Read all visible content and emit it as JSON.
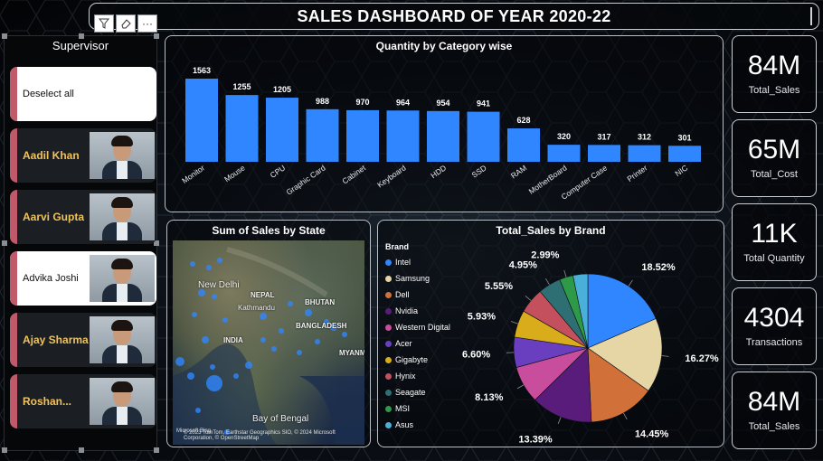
{
  "header": {
    "title": "SALES DASHBOARD OF YEAR 2020-22"
  },
  "toolbar": {
    "filter_icon": "filter-icon",
    "eraser_icon": "eraser-icon",
    "more_label": "···"
  },
  "slicer": {
    "title": "Supervisor",
    "items": [
      {
        "label": "Deselect all",
        "style": "white",
        "photo": false
      },
      {
        "label": "Aadil Khan",
        "style": "dark",
        "photo": true
      },
      {
        "label": "Aarvi Gupta",
        "style": "dark",
        "photo": true
      },
      {
        "label": "Advika Joshi",
        "style": "white",
        "photo": true
      },
      {
        "label": "Ajay Sharma",
        "style": "dark",
        "photo": true
      },
      {
        "label": "Roshan...",
        "style": "dark",
        "photo": true
      }
    ]
  },
  "kpis": [
    {
      "value": "84M",
      "label": "Total_Sales"
    },
    {
      "value": "65M",
      "label": "Total_Cost"
    },
    {
      "value": "11K",
      "label": "Total Quantity"
    },
    {
      "value": "4304",
      "label": "Transactions"
    },
    {
      "value": "84M",
      "label": "Total_Sales"
    }
  ],
  "map": {
    "title": "Sum of Sales by State",
    "labels": [
      "New Delhi",
      "NEPAL",
      "Kathmandu",
      "BHUTAN",
      "BANGLADESH",
      "INDIA",
      "MYANM",
      "Bay of Bengal"
    ],
    "credit": "© 2023 TomTom, Earthstar Geographics SIO, © 2024 Microsoft Corporation, © OpenStreetMap",
    "brand": "Microsoft Bing"
  },
  "chart_data": [
    {
      "type": "bar",
      "title": "Quantity by Category wise",
      "categories": [
        "Monitor",
        "Mouse",
        "CPU",
        "Graphic Card",
        "Cabinet",
        "Keyboard",
        "HDD",
        "SSD",
        "RAM",
        "MotherBoard",
        "Computer Case",
        "Printer",
        "NIC"
      ],
      "values": [
        1563,
        1255,
        1205,
        988,
        970,
        964,
        954,
        941,
        628,
        320,
        317,
        312,
        301
      ],
      "ylim": [
        0,
        1700
      ],
      "color": "#2f86ff"
    },
    {
      "type": "pie",
      "title": "Total_Sales by Brand",
      "legend_title": "Brand",
      "labels": [
        "Intel",
        "Samsung",
        "Dell",
        "Nvidia",
        "Western Digital",
        "Acer",
        "Gigabyte",
        "Hynix",
        "Seagate",
        "MSI",
        "Asus"
      ],
      "values": [
        18.52,
        16.27,
        14.45,
        13.39,
        8.13,
        6.6,
        5.93,
        5.55,
        4.95,
        2.99,
        3.22
      ],
      "value_labels": [
        "18.52%",
        "16.27%",
        "14.45%",
        "13.39%",
        "8.13%",
        "6.60%",
        "5.93%",
        "5.55%",
        "4.95%",
        "2.99%",
        ""
      ],
      "colors": [
        "#2f86ff",
        "#e6d6a6",
        "#d2703a",
        "#5a1c7a",
        "#c84d9c",
        "#6a3fbf",
        "#d9ac1c",
        "#c3505c",
        "#2d6f73",
        "#2e9a48",
        "#4bb0d9"
      ]
    }
  ]
}
